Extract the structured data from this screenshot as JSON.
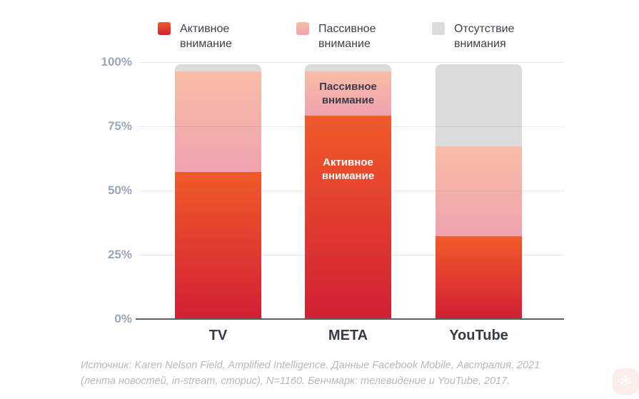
{
  "legend": {
    "items": [
      {
        "key": "active",
        "label": "Активное внимание"
      },
      {
        "key": "passive",
        "label": "Пассивное внимание"
      },
      {
        "key": "absent",
        "label": "Отсутствие внимания"
      }
    ]
  },
  "chart_data": {
    "type": "bar",
    "stacked": true,
    "title": "",
    "categories": [
      "TV",
      "META",
      "YouTube"
    ],
    "series": [
      {
        "key": "active",
        "name": "Активное внимание",
        "values": [
          57,
          79,
          32
        ]
      },
      {
        "key": "passive",
        "name": "Пассивное внимание",
        "values": [
          39,
          17,
          35
        ]
      },
      {
        "key": "absent",
        "name": "Отсутствие внимания",
        "values": [
          3,
          3,
          32
        ]
      }
    ],
    "unit": "%",
    "ylim": [
      0,
      100
    ],
    "yticks_top_down": [
      "100%",
      "75%",
      "50%",
      "25%",
      "0%"
    ],
    "grid": true,
    "legend_position": "top",
    "annotations": [
      {
        "category": "META",
        "segment": "passive",
        "text": "Пассивное внимание"
      },
      {
        "category": "META",
        "segment": "active",
        "text": "Активное внимание"
      }
    ]
  },
  "colors": {
    "active_top": "#f15b29",
    "active_bottom": "#d21f34",
    "passive_top": "#f9bda6",
    "passive_bottom": "#efa2af",
    "absent": "#dbdbdb",
    "axis": "#5a6270",
    "ylabel": "#9aa7ba",
    "xlabel": "#363b47"
  },
  "source": {
    "line1": "Источник: Karen Nelson Field, Amplified Intelligence. Данные Facebook Mobile, Австралия, 2021",
    "line2": "(лента новостей, in-stream, сторис), N=1160. Бенчмарк: телевидение и YouTube, 2017."
  },
  "watermark": {
    "glyph": "✻"
  }
}
